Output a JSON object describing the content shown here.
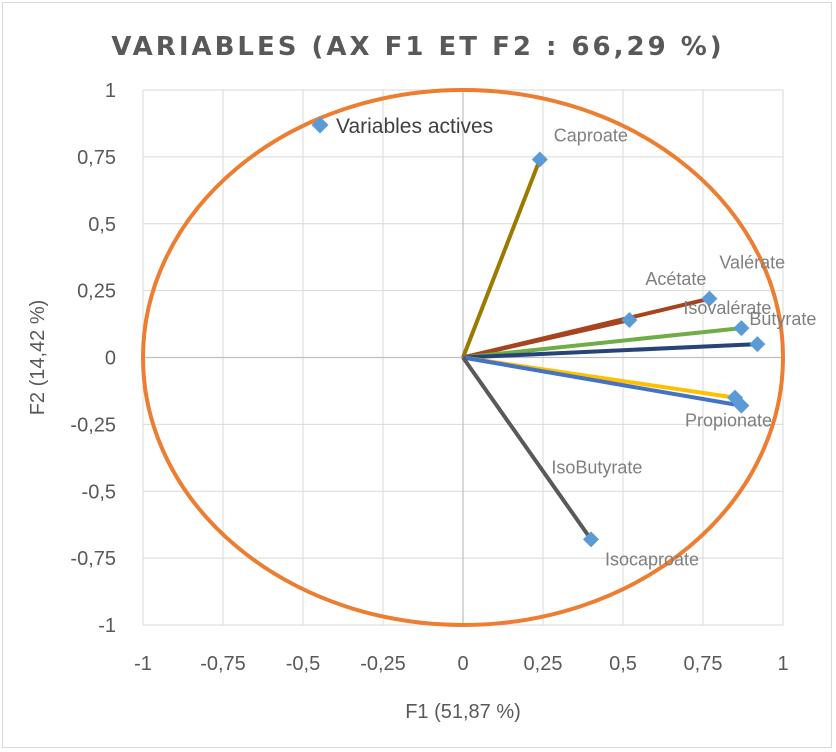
{
  "chart_data": {
    "type": "scatter",
    "title": "VARIABLES (AX F1 ET F2 : 66,29 %)",
    "xlabel": "F1 (51,87 %)",
    "ylabel": "F2 (14,42 %)",
    "xlim": [
      -1,
      1
    ],
    "ylim": [
      -1,
      1
    ],
    "x_ticks": [
      "-1",
      "-0,75",
      "-0,5",
      "-0,25",
      "0",
      "0,25",
      "0,5",
      "0,75",
      "1"
    ],
    "y_ticks": [
      "1",
      "0,75",
      "0,5",
      "0,25",
      "0",
      "-0,25",
      "-0,5",
      "-0,75",
      "-1"
    ],
    "grid": true,
    "circle": {
      "radius": 1,
      "color": "#ed7d31"
    },
    "legend": {
      "label": "Variables actives",
      "position": "top-left",
      "marker_color": "#5b9bd5"
    },
    "series": [
      {
        "name": "Variables actives",
        "points": [
          {
            "label": "Caproate",
            "x": 0.24,
            "y": 0.74,
            "color": "#9c7a00"
          },
          {
            "label": "Acétate",
            "x": 0.52,
            "y": 0.14,
            "color": "#a5441e"
          },
          {
            "label": "Valérate",
            "x": 0.77,
            "y": 0.22,
            "color": "#a5441e"
          },
          {
            "label": "Butyrate",
            "x": 0.87,
            "y": 0.11,
            "color": "#70ad47"
          },
          {
            "label": "Isovalérate",
            "x": 0.92,
            "y": 0.05,
            "color": "#264478"
          },
          {
            "label": "Propionate",
            "x": 0.85,
            "y": -0.15,
            "color": "#ffc000"
          },
          {
            "label": "IsoButyrate",
            "x": 0.87,
            "y": -0.18,
            "color": "#4472c4"
          },
          {
            "label": "Isocaproate",
            "x": 0.4,
            "y": -0.68,
            "color": "#595959"
          }
        ]
      }
    ]
  }
}
